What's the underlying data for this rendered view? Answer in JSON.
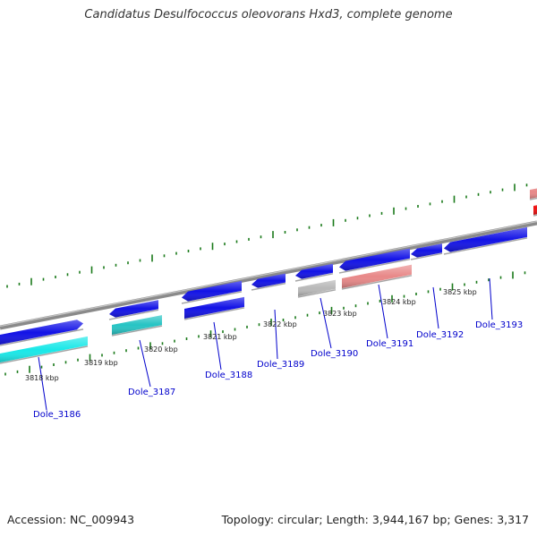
{
  "title": "Candidatus Desulfococcus oleovorans Hxd3, complete genome",
  "footer": {
    "accession": "Accession: NC_009943",
    "summary": "Topology: circular; Length: 3,944,167 bp; Genes: 3,317"
  },
  "colors": {
    "backbone": "#8a8a8a",
    "tick": "#1a7a1a",
    "label": "#0000cc",
    "forward_gene": "#1212e6",
    "cds_blue": "#2a2ad0",
    "cyan_gene": "#18e8e8",
    "teal_gene": "#26c4c4",
    "grey_gene": "#b8b8b8",
    "pink_gene": "#e88888",
    "red_gene": "#ee1010"
  },
  "kbp_labels": [
    "3818 kbp",
    "3819 kbp",
    "3820 kbp",
    "3821 kbp",
    "3822 kbp",
    "3823 kbp",
    "3824 kbp",
    "3825 kbp"
  ],
  "gene_labels": [
    "Dole_3186",
    "Dole_3187",
    "Dole_3188",
    "Dole_3189",
    "Dole_3190",
    "Dole_3191",
    "Dole_3192",
    "Dole_3193"
  ]
}
